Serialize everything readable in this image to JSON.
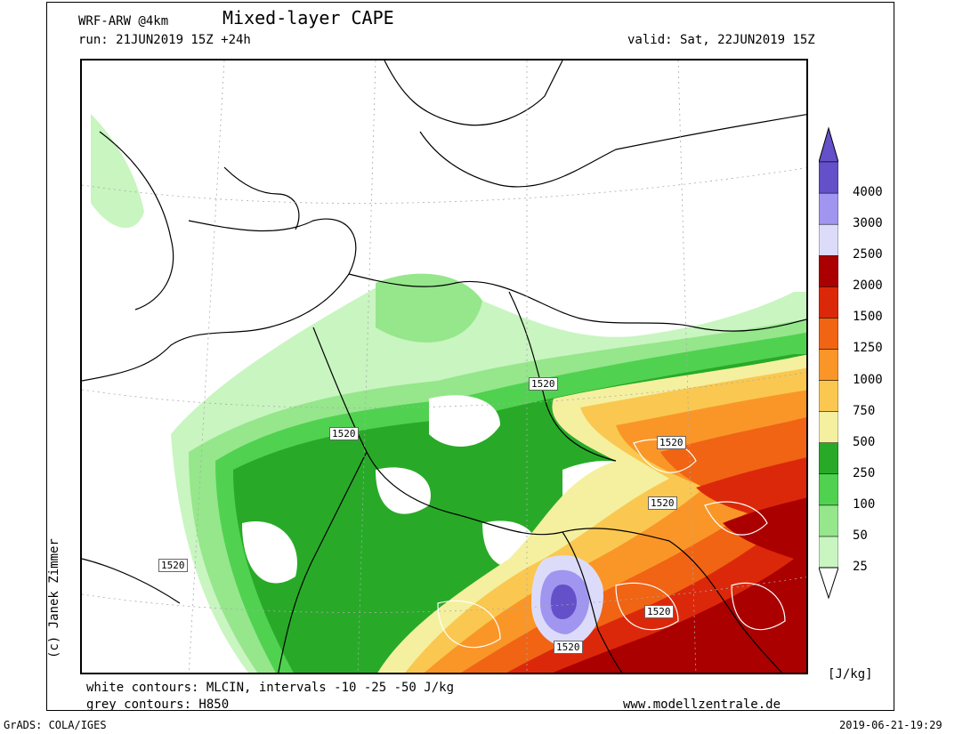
{
  "header": {
    "model": "WRF-ARW @4km",
    "title": "Mixed-layer CAPE",
    "run": "run: 21JUN2019 15Z +24h",
    "valid": "valid: Sat, 22JUN2019 15Z"
  },
  "credit": "(c) Janek Zimmer",
  "footer": {
    "caption_white": "white contours: MLCIN, intervals -10 -25 -50 J/kg",
    "caption_grey": "grey contours: H850",
    "website": "www.modellzentrale.de",
    "software": "GrADS: COLA/IGES",
    "timestamp": "2019-06-21-19:29"
  },
  "colorbar": {
    "unit": "[J/kg]",
    "levels": [
      {
        "label": "25",
        "color": "#c8f5c0"
      },
      {
        "label": "50",
        "color": "#96e68c"
      },
      {
        "label": "100",
        "color": "#50d250"
      },
      {
        "label": "250",
        "color": "#28aa28"
      },
      {
        "label": "500",
        "color": "#f5f0a0"
      },
      {
        "label": "750",
        "color": "#fac850"
      },
      {
        "label": "1000",
        "color": "#fa9628"
      },
      {
        "label": "1250",
        "color": "#f06414"
      },
      {
        "label": "1500",
        "color": "#dc280a"
      },
      {
        "label": "2000",
        "color": "#aa0000"
      },
      {
        "label": "2500",
        "color": "#dcdcfa"
      },
      {
        "label": "3000",
        "color": "#a096f0"
      },
      {
        "label": "4000",
        "color": "#6450c8"
      }
    ],
    "top_color": "#6450c8"
  },
  "contour_labels": [
    "1520",
    "1520",
    "1520",
    "1520",
    "1520",
    "1520",
    "1520"
  ]
}
